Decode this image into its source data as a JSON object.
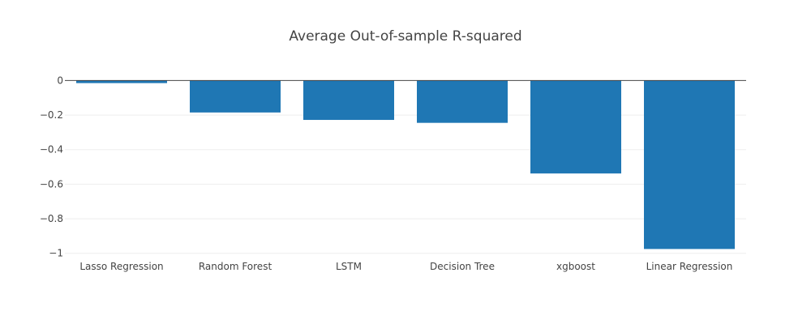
{
  "chart_data": {
    "type": "bar",
    "title": "Average Out-of-sample R-squared",
    "xlabel": "",
    "ylabel": "",
    "categories": [
      "Lasso Regression",
      "Random Forest",
      "LSTM",
      "Decision Tree",
      "xgboost",
      "Linear Regression"
    ],
    "values": [
      -0.015,
      -0.185,
      -0.228,
      -0.245,
      -0.538,
      -0.975
    ],
    "ylim": [
      -1.02,
      0.03
    ],
    "yticks": [
      0,
      -0.2,
      -0.4,
      -0.6,
      -0.8,
      -1
    ],
    "ytick_labels": [
      "0",
      "−0.2",
      "−0.4",
      "−0.6",
      "−0.8",
      "−1"
    ],
    "grid": true,
    "legend": "none",
    "bar_color": "#1f77b4"
  }
}
